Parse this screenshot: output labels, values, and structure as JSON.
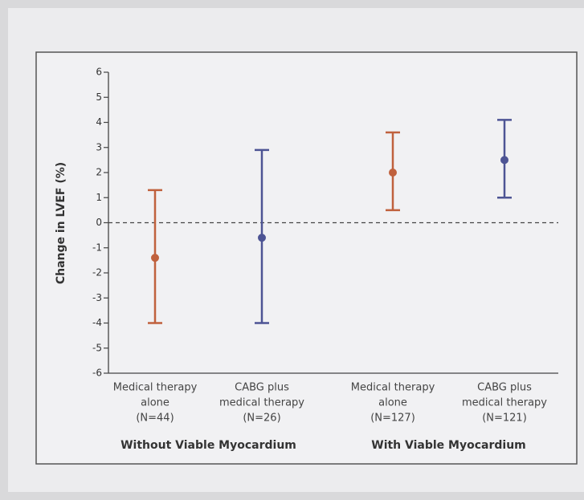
{
  "chart_data": {
    "type": "errorbar",
    "y_label": "Change in LVEF (%)",
    "categories": [
      [
        "Medical therapy",
        "alone",
        "(N=44)"
      ],
      [
        "CABG plus",
        "medical therapy",
        "(N=26)"
      ],
      [
        "Medical therapy",
        "alone",
        "(N=127)"
      ],
      [
        "CABG plus",
        "medical therapy",
        "(N=121)"
      ]
    ],
    "groups": [
      "Without Viable Myocardium",
      "With Viable Myocardium"
    ],
    "values": [
      -1.4,
      -0.6,
      2.0,
      2.5
    ],
    "lower": [
      -4.0,
      -4.0,
      0.5,
      1.0
    ],
    "upper": [
      1.3,
      2.9,
      3.6,
      4.1
    ],
    "colors": [
      "#c0613d",
      "#4d5494",
      "#c0613d",
      "#4d5494"
    ],
    "ylim": [
      -6,
      6
    ],
    "yticks": [
      -6,
      -5,
      -4,
      -3,
      -2,
      -1,
      0,
      1,
      2,
      3,
      4,
      5,
      6
    ],
    "reference_line": 0
  }
}
